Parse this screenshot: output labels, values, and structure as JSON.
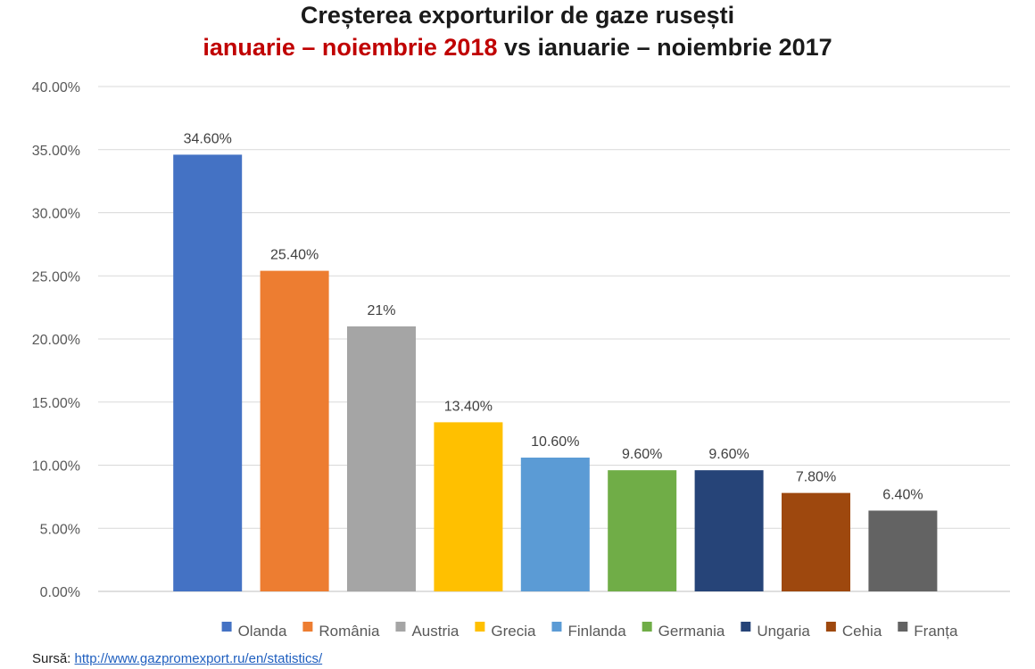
{
  "chart_data": {
    "type": "bar",
    "title_main": "Creșterea exporturilor de gaze rusești",
    "title_highlight": "ianuarie – noiembrie 2018",
    "title_rest": " vs ianuarie – noiembrie 2017",
    "categories": [
      "Olanda",
      "România",
      "Austria",
      "Grecia",
      "Finlanda",
      "Germania",
      "Ungaria",
      "Cehia",
      "Franța"
    ],
    "values": [
      34.6,
      25.4,
      21.0,
      13.4,
      10.6,
      9.6,
      9.6,
      7.8,
      6.4
    ],
    "data_labels": [
      "34.60%",
      "25.40%",
      "21%",
      "13.40%",
      "10.60%",
      "9.60%",
      "9.60%",
      "7.80%",
      "6.40%"
    ],
    "colors": [
      "#4472c4",
      "#ed7d31",
      "#a5a5a5",
      "#ffc000",
      "#5b9bd5",
      "#70ad47",
      "#264478",
      "#9e480e",
      "#636363"
    ],
    "ylim": [
      0,
      40
    ],
    "yticks": [
      "0.00%",
      "5.00%",
      "10.00%",
      "15.00%",
      "20.00%",
      "25.00%",
      "30.00%",
      "35.00%",
      "40.00%"
    ],
    "grid": true,
    "legend_position": "bottom"
  },
  "source": {
    "label": "Sursă:",
    "url": "http://www.gazpromexport.ru/en/statistics/"
  }
}
